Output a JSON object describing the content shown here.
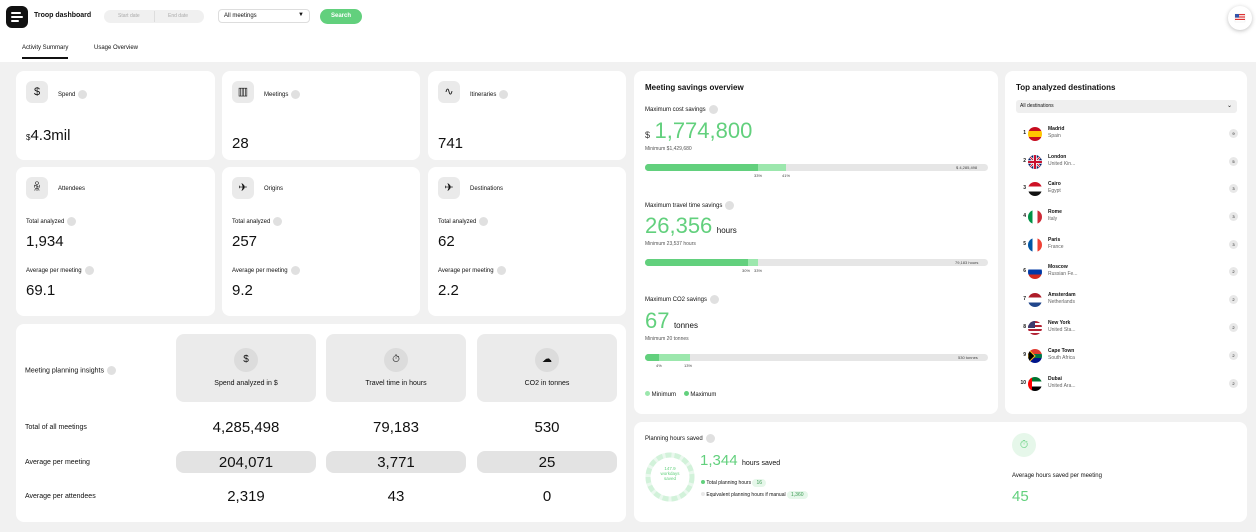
{
  "header": {
    "app_title": "Troop dashboard",
    "start_date_placeholder": "Start date",
    "end_date_placeholder": "End date",
    "meeting_filter": "All meetings",
    "search_label": "Search"
  },
  "tabs": [
    {
      "label": "Activity Summary",
      "active": true
    },
    {
      "label": "Usage Overview",
      "active": false
    }
  ],
  "kpis": {
    "spend": {
      "label": "Spend",
      "currency": "$",
      "value": "4.3mil"
    },
    "meetings": {
      "label": "Meetings",
      "value": "28"
    },
    "itineraries": {
      "label": "Itineraries",
      "value": "741"
    },
    "attendees": {
      "label": "Attendees",
      "total_label": "Total analyzed",
      "total": "1,934",
      "avg_label": "Average per meeting",
      "avg": "69.1"
    },
    "origins": {
      "label": "Origins",
      "total_label": "Total analyzed",
      "total": "257",
      "avg_label": "Average per meeting",
      "avg": "9.2"
    },
    "destinations": {
      "label": "Destinations",
      "total_label": "Total analyzed",
      "total": "62",
      "avg_label": "Average per meeting",
      "avg": "2.2"
    }
  },
  "insights": {
    "title": "Meeting planning insights",
    "columns": [
      {
        "label": "Spend analyzed in $",
        "icon": "dollar-icon"
      },
      {
        "label": "Travel time in hours",
        "icon": "stopwatch-icon"
      },
      {
        "label": "CO2 in tonnes",
        "icon": "cloud-icon"
      }
    ],
    "rows": [
      {
        "label": "Total of all meetings",
        "values": [
          "4,285,498",
          "79,183",
          "530"
        ]
      },
      {
        "label": "Average per meeting",
        "values": [
          "204,071",
          "3,771",
          "25"
        ]
      },
      {
        "label": "Average per attendees",
        "values": [
          "2,319",
          "43",
          "0"
        ]
      }
    ]
  },
  "savings": {
    "title": "Meeting savings overview",
    "cost": {
      "label": "Maximum cost savings",
      "currency": "$",
      "value": "1,774,800",
      "minimum": "Minimum $1,429,680",
      "bar_total": "$ 4,285,498",
      "min_pct_label": "33%",
      "max_pct_label": "41%",
      "min_pct": 33,
      "max_pct": 41
    },
    "time": {
      "label": "Maximum travel time savings",
      "value": "26,356",
      "unit": "hours",
      "minimum": "Minimum 23,537 hours",
      "bar_total": "79,183 hours",
      "min_pct_label": "30%",
      "max_pct_label": "33%",
      "min_pct": 30,
      "max_pct": 33
    },
    "co2": {
      "label": "Maximum CO2 savings",
      "value": "67",
      "unit": "tonnes",
      "minimum": "Minimum 20 tonnes",
      "bar_total": "530 tonnes",
      "min_pct_label": "4%",
      "max_pct_label": "13%",
      "min_pct": 4,
      "max_pct": 13
    },
    "legend_min": "Minimum",
    "legend_max": "Maximum",
    "colors": {
      "min": "#62d07d",
      "max": "#9ce7ad"
    }
  },
  "destinations": {
    "title": "Top analyzed destinations",
    "filter": "All destinations",
    "items": [
      {
        "rank": "1",
        "city": "Madrid",
        "country": "Spain",
        "count": "9"
      },
      {
        "rank": "2",
        "city": "London",
        "country": "United Kin...",
        "count": "5"
      },
      {
        "rank": "3",
        "city": "Cairo",
        "country": "Egypt",
        "count": "3"
      },
      {
        "rank": "4",
        "city": "Rome",
        "country": "Italy",
        "count": "3"
      },
      {
        "rank": "5",
        "city": "Paris",
        "country": "France",
        "count": "3"
      },
      {
        "rank": "6",
        "city": "Moscow",
        "country": "Russian Fe...",
        "count": "2"
      },
      {
        "rank": "7",
        "city": "Amsterdam",
        "country": "Netherlands",
        "count": "2"
      },
      {
        "rank": "8",
        "city": "New York",
        "country": "United Sta...",
        "count": "2"
      },
      {
        "rank": "9",
        "city": "Cape Town",
        "country": "South Africa",
        "count": "2"
      },
      {
        "rank": "10",
        "city": "Dubai",
        "country": "United Ara...",
        "count": "2"
      }
    ]
  },
  "planning": {
    "title": "Planning hours saved",
    "ring_value": "147.9",
    "ring_unit": "workdays",
    "ring_suffix": "saved",
    "value": "1,344",
    "unit": "hours saved",
    "total_label": "Total planning hours",
    "total": "16",
    "manual_label": "Equivalent planning hours if manual",
    "manual": "1,360",
    "avg_label": "Average hours saved per meeting",
    "avg": "45"
  }
}
